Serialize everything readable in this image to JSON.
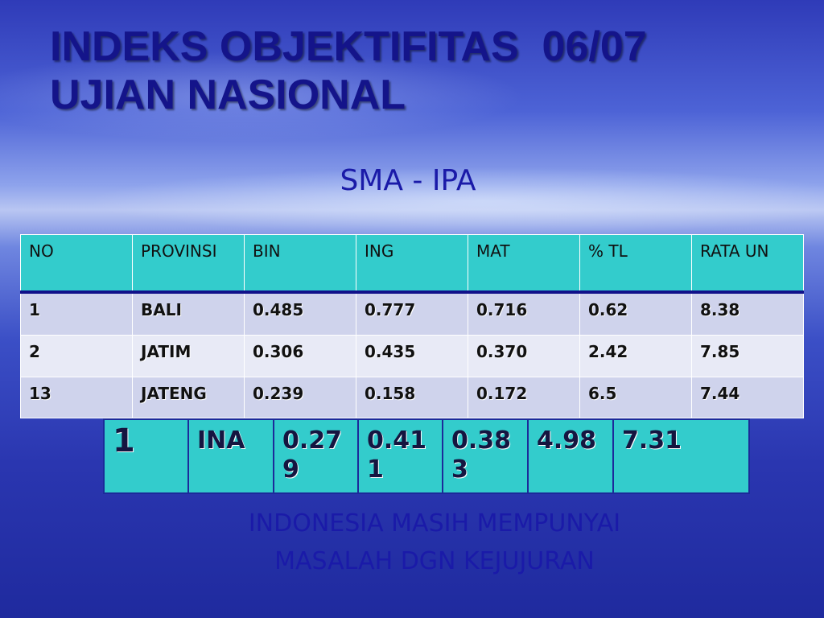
{
  "title": [
    "INDEKS OBJEKTIFITAS  06/07",
    "UJIAN NASIONAL"
  ],
  "subtitle": "SMA - IPA",
  "table": {
    "header": [
      "NO",
      "PROVINSI",
      "BIN",
      "ING",
      "MAT",
      "% TL",
      "RATA UN"
    ],
    "rows": [
      [
        "1",
        "BALI",
        "0.485",
        "0.777",
        "0.716",
        "0.62",
        "8.38"
      ],
      [
        "2",
        "JATIM",
        "0.306",
        "0.435",
        "0.370",
        "2.42",
        "7.85"
      ],
      [
        "13",
        "JATENG",
        "0.239",
        "0.158",
        "0.172",
        "6.5",
        "7.44"
      ]
    ]
  },
  "summary": [
    "1",
    "INA",
    "0.279",
    "0.411",
    "0.383",
    "4.98",
    "7.31"
  ],
  "footer": [
    "INDONESIA MASIH MEMPUNYAI",
    "MASALAH  DGN KEJUJURAN"
  ]
}
